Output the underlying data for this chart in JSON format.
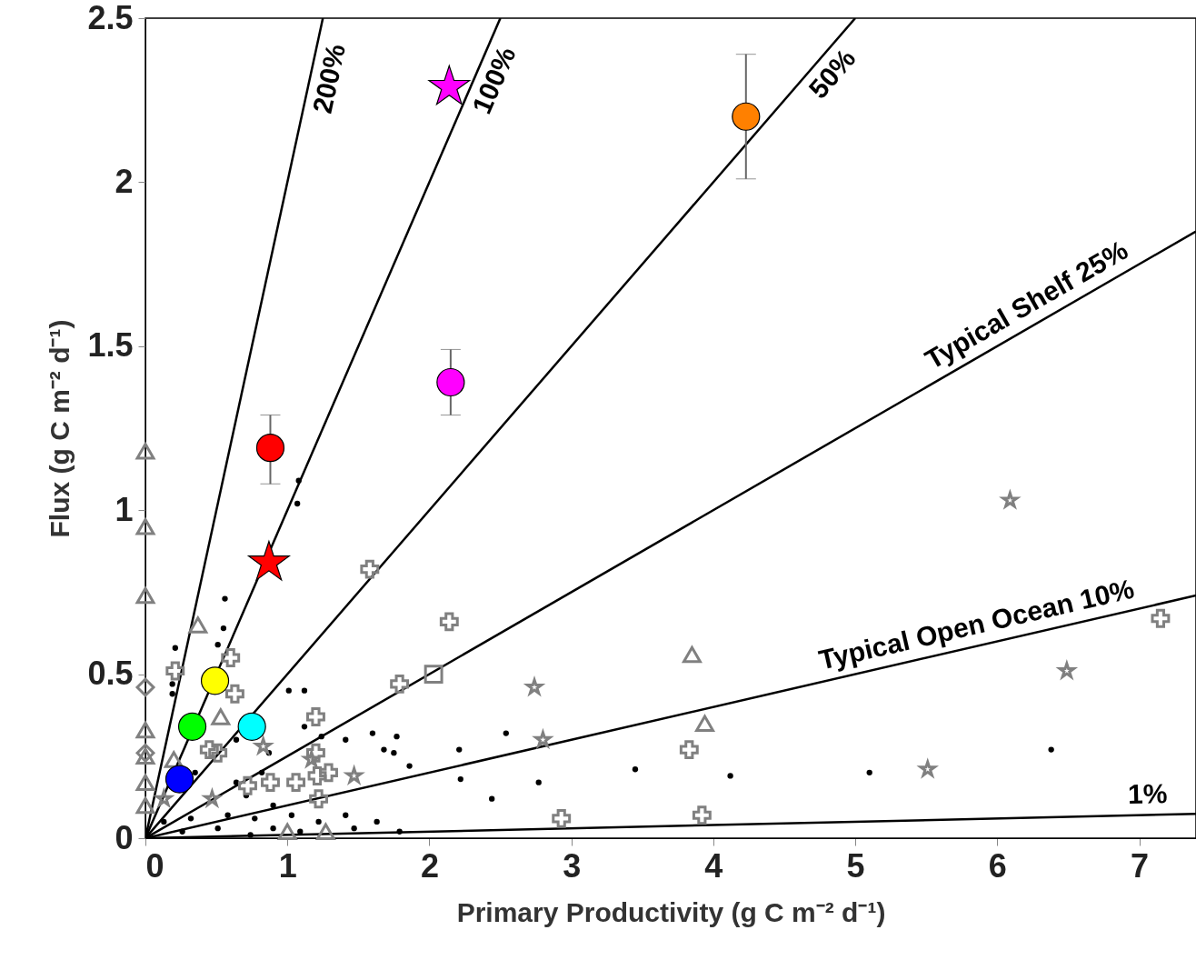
{
  "chart_data": {
    "type": "scatter",
    "xlabel": "Primary Productivity (g C m⁻² d⁻¹)",
    "ylabel": "Flux (g C m⁻² d⁻¹)",
    "xlim": [
      0,
      7.4
    ],
    "ylim": [
      0,
      2.5
    ],
    "xticks": [
      0,
      1,
      2,
      3,
      4,
      5,
      6,
      7
    ],
    "yticks": [
      0,
      0.5,
      1,
      1.5,
      2,
      2.5
    ],
    "grid": false,
    "series": [
      {
        "type": "line",
        "name": "200%",
        "color": "#000000",
        "x": [
          0,
          1.25
        ],
        "values": [
          0,
          2.5
        ]
      },
      {
        "type": "line",
        "name": "100%",
        "color": "#000000",
        "x": [
          0,
          2.5
        ],
        "values": [
          0,
          2.5
        ]
      },
      {
        "type": "line",
        "name": "50%",
        "color": "#000000",
        "x": [
          0,
          5
        ],
        "values": [
          0,
          2.5
        ]
      },
      {
        "type": "line",
        "name": "Typical Shelf  25%",
        "color": "#000000",
        "x": [
          0,
          7.4
        ],
        "values": [
          0,
          1.85
        ]
      },
      {
        "type": "line",
        "name": "Typical Open Ocean  10%",
        "color": "#000000",
        "x": [
          0,
          7.4
        ],
        "values": [
          0,
          0.74
        ]
      },
      {
        "type": "line",
        "name": "1%",
        "color": "#000000",
        "x": [
          0,
          7.4
        ],
        "values": [
          0,
          0.074
        ]
      },
      {
        "marker": "circle",
        "color": "#000000",
        "x": [
          6.38,
          5.1,
          4.12,
          3.45,
          2.77,
          2.54,
          2.22,
          2.44,
          2.21,
          1.86,
          1.75,
          1.6,
          1.01,
          1.08,
          1.07,
          0.56,
          0.55,
          0.51,
          0.21,
          0.19,
          0.19,
          1.12,
          1.12,
          1.24,
          1.41,
          1.77,
          1.68,
          0.64,
          0.87,
          0.82,
          0.71,
          0.9,
          0.58,
          0.77,
          1.03,
          1.22,
          1.47,
          0.51,
          0.32,
          0.26,
          1.41,
          0.64,
          0.35,
          0.9,
          1.63,
          0.13,
          1.79,
          1.09,
          0.74
        ],
        "values": [
          0.27,
          0.2,
          0.19,
          0.21,
          0.17,
          0.32,
          0.18,
          0.12,
          0.27,
          0.22,
          0.26,
          0.32,
          0.45,
          1.09,
          1.02,
          0.73,
          0.64,
          0.59,
          0.58,
          0.47,
          0.44,
          0.45,
          0.34,
          0.31,
          0.3,
          0.31,
          0.27,
          0.3,
          0.26,
          0.2,
          0.13,
          0.1,
          0.07,
          0.06,
          0.07,
          0.05,
          0.03,
          0.03,
          0.06,
          0.02,
          0.07,
          0.17,
          0.2,
          0.03,
          0.05,
          0.05,
          0.02,
          0.02,
          0.01
        ]
      },
      {
        "marker": "triangle",
        "color": "#808080",
        "x": [
          0,
          0,
          0,
          0.37,
          0.53,
          3.85,
          3.94,
          0,
          0,
          0,
          0,
          0.2,
          1.0,
          1.27
        ],
        "values": [
          1.18,
          0.95,
          0.74,
          0.65,
          0.37,
          0.56,
          0.35,
          0.33,
          0.25,
          0.17,
          0.1,
          0.24,
          0.02,
          0.02
        ]
      },
      {
        "marker": "diamond",
        "color": "#808080",
        "x": [
          0,
          0
        ],
        "values": [
          0.46,
          0.26
        ]
      },
      {
        "marker": "square",
        "color": "#808080",
        "x": [
          2.03
        ],
        "values": [
          0.5
        ]
      },
      {
        "marker": "cross",
        "color": "#808080",
        "x": [
          1.58,
          2.14,
          7.15,
          3.83,
          3.92,
          0.6,
          0.63,
          0.21,
          1.2,
          1.2,
          0.51,
          0.88,
          1.06,
          1.21,
          1.29,
          1.22,
          0.72,
          0.45
        ],
        "values": [
          0.82,
          0.66,
          0.67,
          0.27,
          0.07,
          0.55,
          0.44,
          0.51,
          0.37,
          0.26,
          0.26,
          0.17,
          0.17,
          0.19,
          0.2,
          0.12,
          0.16,
          0.27
        ]
      },
      {
        "marker": "cross",
        "color": "#808080",
        "x": [
          2.93,
          1.79
        ],
        "values": [
          0.06,
          0.47
        ]
      },
      {
        "marker": "star",
        "color": "#808080",
        "x": [
          6.09,
          6.49,
          2.74,
          2.8,
          5.51,
          1.47,
          0.83,
          1.17,
          0.47,
          0.13
        ],
        "values": [
          1.03,
          0.51,
          0.46,
          0.3,
          0.21,
          0.19,
          0.28,
          0.24,
          0.12,
          0.12
        ]
      },
      {
        "marker": "circle",
        "colors": [
          "#ff0000",
          "#ff00ff",
          "#ff8000",
          "#ffff00",
          "#00ff00",
          "#00ffff",
          "#0000ff"
        ],
        "x": [
          0.88,
          2.15,
          4.23,
          0.49,
          0.33,
          0.75,
          0.24
        ],
        "values": [
          1.19,
          1.39,
          2.2,
          0.48,
          0.34,
          0.34,
          0.18
        ],
        "errors": [
          [
            1.08,
            1.29
          ],
          [
            1.29,
            1.49
          ],
          [
            2.01,
            2.39
          ],
          null,
          null,
          null,
          null
        ]
      },
      {
        "marker": "star",
        "colors": [
          "#ff00ff",
          "#ff0000"
        ],
        "x": [
          2.14,
          0.87
        ],
        "values": [
          2.29,
          0.84
        ]
      }
    ]
  }
}
